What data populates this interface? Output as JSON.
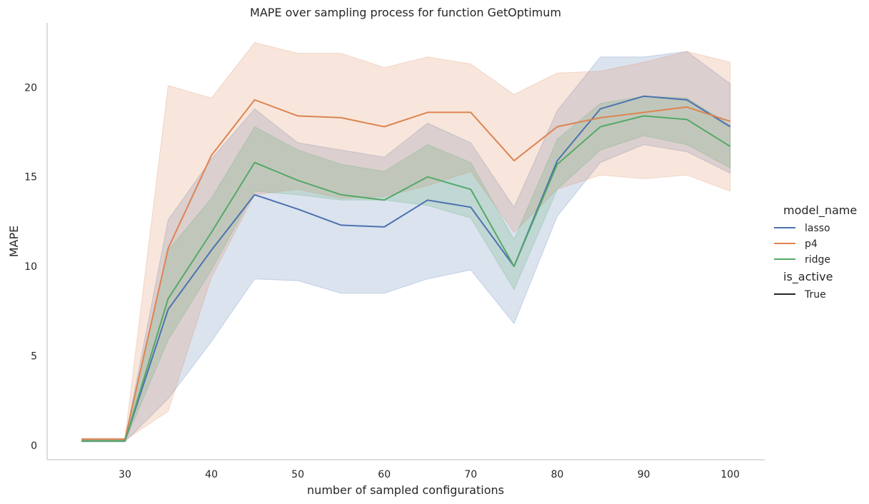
{
  "chart_data": {
    "type": "line",
    "title": "MAPE over sampling process for function GetOptimum",
    "xlabel": "number of sampled configurations",
    "ylabel": "MAPE",
    "xlim": [
      21,
      104
    ],
    "ylim": [
      -0.8,
      23.6
    ],
    "xticks": [
      30,
      40,
      50,
      60,
      70,
      80,
      90,
      100
    ],
    "yticks": [
      0,
      5,
      10,
      15,
      20
    ],
    "x": [
      25,
      30,
      35,
      40,
      45,
      50,
      55,
      60,
      65,
      70,
      75,
      80,
      85,
      90,
      95,
      100
    ],
    "grid": false,
    "legend_placement": "right",
    "legend": {
      "hue_title": "model_name",
      "style_title": "is_active",
      "style_entries": [
        {
          "label": "True",
          "color": "#262626"
        }
      ]
    },
    "series": [
      {
        "name": "lasso",
        "color": "#4c72b0",
        "values": [
          0.25,
          0.25,
          7.6,
          10.9,
          14.0,
          13.2,
          12.3,
          12.2,
          13.7,
          13.3,
          10.0,
          15.9,
          18.8,
          19.5,
          19.3,
          17.8
        ],
        "lower": [
          0.2,
          0.2,
          2.6,
          5.8,
          9.3,
          9.2,
          8.5,
          8.5,
          9.3,
          9.8,
          6.8,
          12.8,
          15.8,
          16.8,
          16.4,
          15.2
        ],
        "upper": [
          0.3,
          0.3,
          12.6,
          16.0,
          18.8,
          16.9,
          16.5,
          16.1,
          18.0,
          16.9,
          13.3,
          18.7,
          21.7,
          21.7,
          22.0,
          20.2
        ]
      },
      {
        "name": "p4",
        "color": "#dd8452",
        "values": [
          0.35,
          0.35,
          11.0,
          16.2,
          19.3,
          18.4,
          18.3,
          17.8,
          18.6,
          18.6,
          15.9,
          17.8,
          18.3,
          18.6,
          18.9,
          18.1
        ],
        "lower": [
          0.3,
          0.3,
          1.9,
          9.4,
          14.0,
          14.3,
          13.8,
          13.9,
          14.5,
          15.3,
          11.9,
          14.3,
          15.1,
          14.9,
          15.1,
          14.2
        ],
        "upper": [
          0.4,
          0.4,
          20.1,
          19.4,
          22.5,
          21.9,
          21.9,
          21.1,
          21.7,
          21.3,
          19.6,
          20.8,
          20.9,
          21.4,
          22.0,
          21.4
        ]
      },
      {
        "name": "ridge",
        "color": "#55a868",
        "values": [
          0.25,
          0.25,
          8.2,
          11.9,
          15.8,
          14.8,
          14.0,
          13.7,
          15.0,
          14.3,
          10.0,
          15.7,
          17.8,
          18.4,
          18.2,
          16.7
        ],
        "lower": [
          0.2,
          0.2,
          5.9,
          9.8,
          14.2,
          14.0,
          13.7,
          13.7,
          13.4,
          12.7,
          8.7,
          14.3,
          16.5,
          17.3,
          16.8,
          15.5
        ],
        "upper": [
          0.3,
          0.3,
          10.9,
          13.8,
          17.8,
          16.5,
          15.7,
          15.3,
          16.8,
          15.8,
          11.5,
          17.1,
          19.1,
          19.5,
          19.4,
          17.9
        ]
      }
    ]
  }
}
